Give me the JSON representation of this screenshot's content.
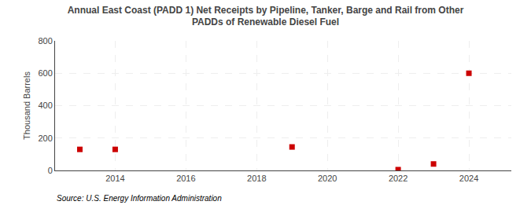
{
  "chart_data": {
    "type": "scatter",
    "title": "Annual East Coast (PADD 1) Net Receipts by Pipeline, Tanker, Barge and Rail from Other\nPADDs of Renewable Diesel Fuel",
    "ylabel": "Thousand Barrels",
    "annotations": [
      "Source: U.S. Energy Information Administration"
    ],
    "x": [
      2013,
      2014,
      2019,
      2022,
      2023,
      2024
    ],
    "values": [
      130,
      130,
      145,
      5,
      40,
      600
    ],
    "color": "#cc0000",
    "marker": "square",
    "xlim": [
      2012.3,
      2025.2
    ],
    "xticks": [
      2014,
      2016,
      2018,
      2020,
      2022,
      2024
    ],
    "ylim": [
      0,
      800
    ],
    "yticks": [
      0,
      200,
      400,
      600,
      800
    ],
    "grid": true
  }
}
